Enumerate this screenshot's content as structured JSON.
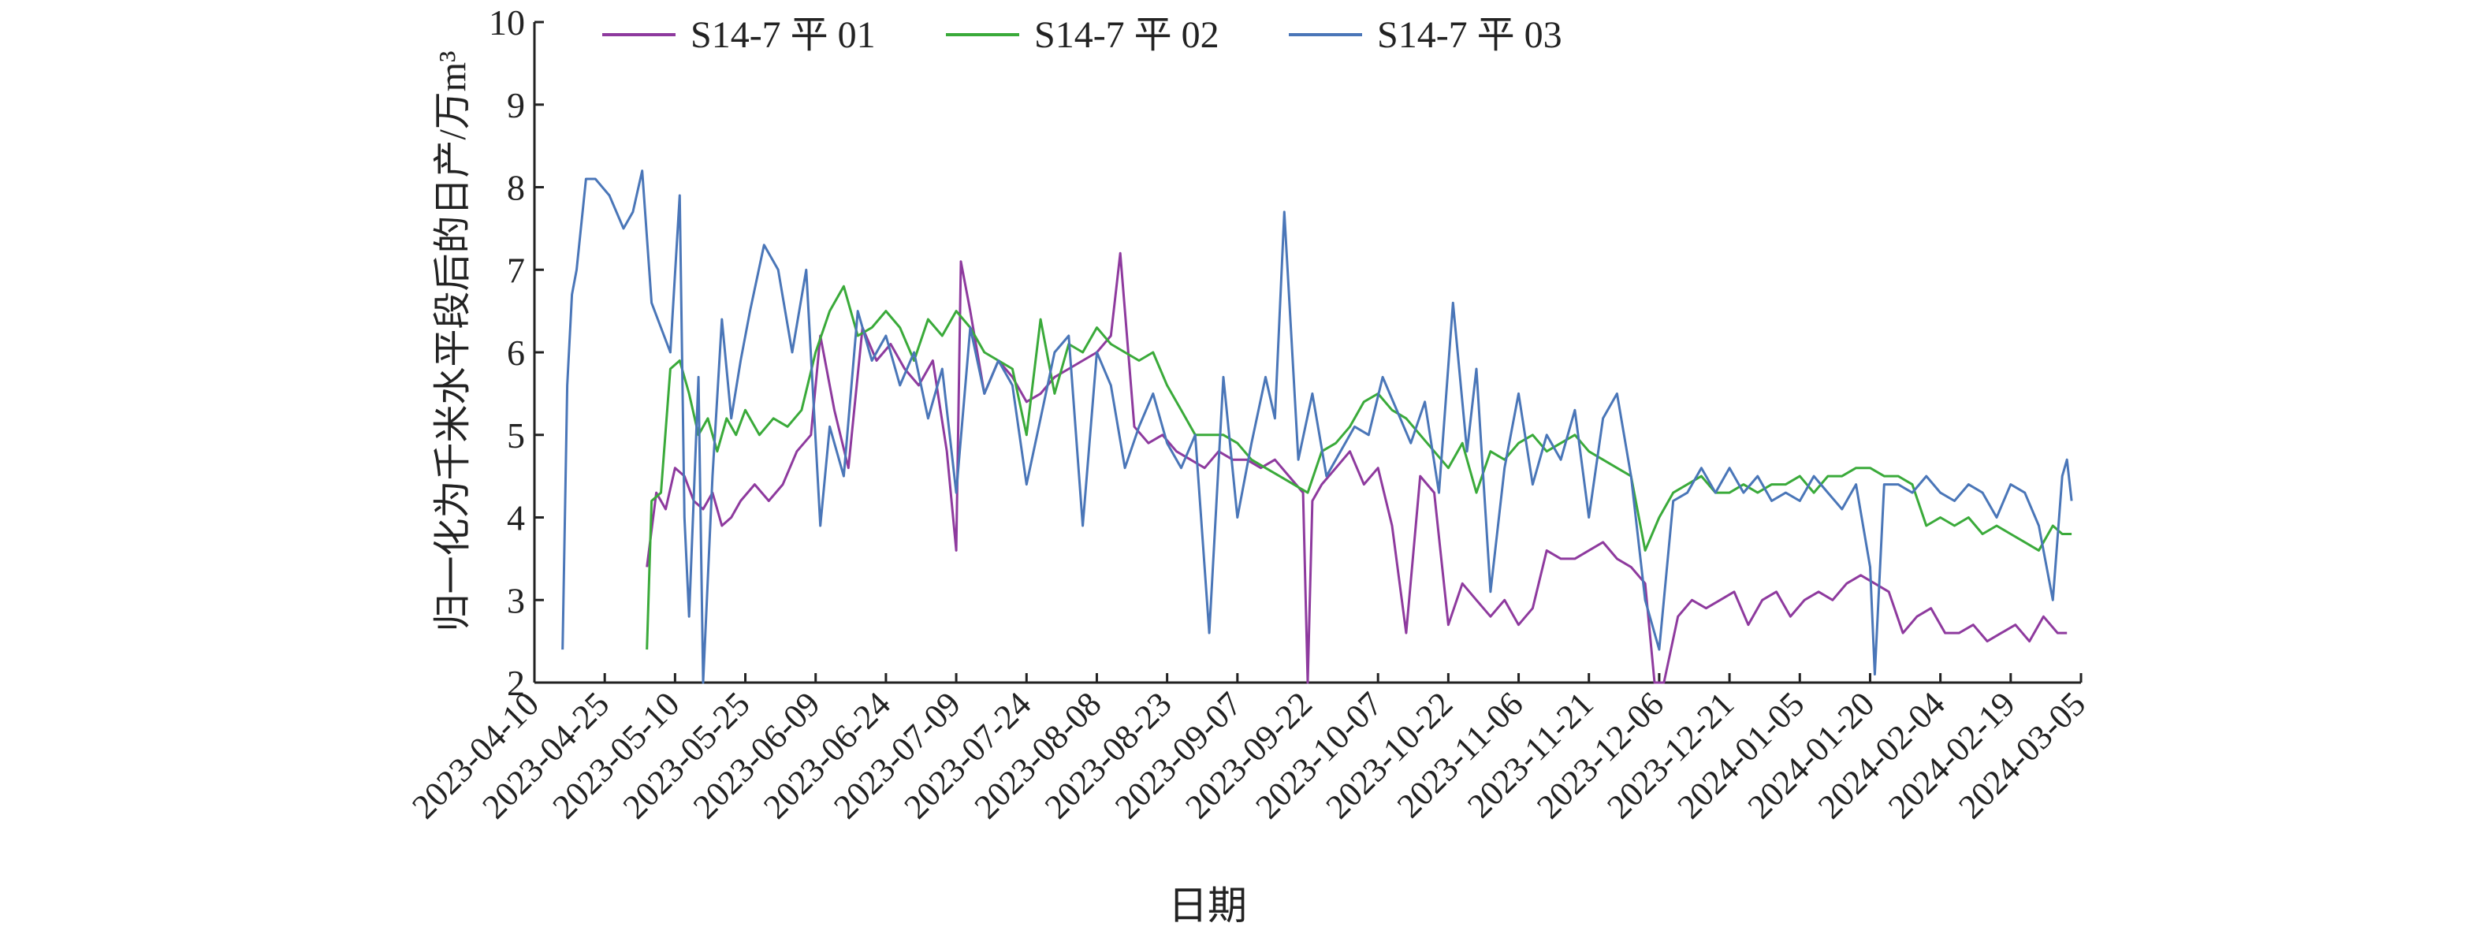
{
  "chart_data": {
    "type": "line",
    "title": "",
    "xlabel": "日期",
    "ylabel": "归一化为千米水平段后的日产/万m³",
    "ylim": [
      2,
      10
    ],
    "yticks": [
      "2",
      "3",
      "4",
      "5",
      "6",
      "7",
      "8",
      "9",
      "10"
    ],
    "xlim": [
      "2023-04-10",
      "2024-03-05"
    ],
    "xticks": [
      "2023-04-10",
      "2023-04-25",
      "2023-05-10",
      "2023-05-25",
      "2023-06-09",
      "2023-06-24",
      "2023-07-09",
      "2023-07-24",
      "2023-08-08",
      "2023-08-23",
      "2023-09-07",
      "2023-09-22",
      "2023-10-07",
      "2023-10-22",
      "2023-11-06",
      "2023-11-21",
      "2023-12-06",
      "2023-12-21",
      "2024-01-05",
      "2024-01-20",
      "2024-02-04",
      "2024-02-19",
      "2024-03-05"
    ],
    "legend_position": "top",
    "grid": false,
    "series": [
      {
        "name": "S14-7 平 01",
        "color": "#8e3a9e",
        "x": [
          "2023-05-04",
          "2023-05-06",
          "2023-05-08",
          "2023-05-10",
          "2023-05-12",
          "2023-05-14",
          "2023-05-16",
          "2023-05-18",
          "2023-05-20",
          "2023-05-22",
          "2023-05-24",
          "2023-05-27",
          "2023-05-30",
          "2023-06-02",
          "2023-06-05",
          "2023-06-08",
          "2023-06-10",
          "2023-06-13",
          "2023-06-16",
          "2023-06-19",
          "2023-06-22",
          "2023-06-25",
          "2023-06-28",
          "2023-07-01",
          "2023-07-04",
          "2023-07-07",
          "2023-07-09",
          "2023-07-10",
          "2023-07-12",
          "2023-07-15",
          "2023-07-18",
          "2023-07-21",
          "2023-07-24",
          "2023-07-27",
          "2023-07-30",
          "2023-08-02",
          "2023-08-05",
          "2023-08-08",
          "2023-08-11",
          "2023-08-13",
          "2023-08-16",
          "2023-08-19",
          "2023-08-22",
          "2023-08-25",
          "2023-08-28",
          "2023-08-31",
          "2023-09-03",
          "2023-09-06",
          "2023-09-09",
          "2023-09-12",
          "2023-09-15",
          "2023-09-18",
          "2023-09-21",
          "2023-09-22",
          "2023-09-23",
          "2023-09-25",
          "2023-09-28",
          "2023-10-01",
          "2023-10-04",
          "2023-10-07",
          "2023-10-10",
          "2023-10-13",
          "2023-10-16",
          "2023-10-19",
          "2023-10-22",
          "2023-10-25",
          "2023-10-28",
          "2023-10-31",
          "2023-11-03",
          "2023-11-06",
          "2023-11-09",
          "2023-11-12",
          "2023-11-15",
          "2023-11-18",
          "2023-11-21",
          "2023-11-24",
          "2023-11-27",
          "2023-11-30",
          "2023-12-03",
          "2023-12-05",
          "2023-12-07",
          "2023-12-10",
          "2023-12-13",
          "2023-12-16",
          "2023-12-19",
          "2023-12-22",
          "2023-12-25",
          "2023-12-28",
          "2023-12-31",
          "2024-01-03",
          "2024-01-06",
          "2024-01-09",
          "2024-01-12",
          "2024-01-15",
          "2024-01-18",
          "2024-01-21",
          "2024-01-24",
          "2024-01-27",
          "2024-01-30",
          "2024-02-02",
          "2024-02-05",
          "2024-02-08",
          "2024-02-11",
          "2024-02-14",
          "2024-02-17",
          "2024-02-20",
          "2024-02-23",
          "2024-02-26",
          "2024-02-29",
          "2024-03-02"
        ],
        "y": [
          3.4,
          4.3,
          4.1,
          4.6,
          4.5,
          4.2,
          4.1,
          4.3,
          3.9,
          4.0,
          4.2,
          4.4,
          4.2,
          4.4,
          4.8,
          5.0,
          6.2,
          5.3,
          4.6,
          6.3,
          5.9,
          6.1,
          5.8,
          5.6,
          5.9,
          4.8,
          3.6,
          7.1,
          6.5,
          5.5,
          5.9,
          5.7,
          5.4,
          5.5,
          5.7,
          5.8,
          5.9,
          6.0,
          6.2,
          7.2,
          5.1,
          4.9,
          5.0,
          4.8,
          4.7,
          4.6,
          4.8,
          4.7,
          4.7,
          4.6,
          4.7,
          4.5,
          4.3,
          2.0,
          4.2,
          4.4,
          4.6,
          4.8,
          4.4,
          4.6,
          3.9,
          2.6,
          4.5,
          4.3,
          2.7,
          3.2,
          3.0,
          2.8,
          3.0,
          2.7,
          2.9,
          3.6,
          3.5,
          3.5,
          3.6,
          3.7,
          3.5,
          3.4,
          3.2,
          2.0,
          2.0,
          2.8,
          3.0,
          2.9,
          3.0,
          3.1,
          2.7,
          3.0,
          3.1,
          2.8,
          3.0,
          3.1,
          3.0,
          3.2,
          3.3,
          3.2,
          3.1,
          2.6,
          2.8,
          2.9,
          2.6,
          2.6,
          2.7,
          2.5,
          2.6,
          2.7,
          2.5,
          2.8,
          2.6,
          2.6
        ]
      },
      {
        "name": "S14-7 平 02",
        "color": "#3aaa3a",
        "x": [
          "2023-05-04",
          "2023-05-05",
          "2023-05-07",
          "2023-05-09",
          "2023-05-11",
          "2023-05-13",
          "2023-05-15",
          "2023-05-17",
          "2023-05-19",
          "2023-05-21",
          "2023-05-23",
          "2023-05-25",
          "2023-05-28",
          "2023-05-31",
          "2023-06-03",
          "2023-06-06",
          "2023-06-09",
          "2023-06-12",
          "2023-06-15",
          "2023-06-18",
          "2023-06-21",
          "2023-06-24",
          "2023-06-27",
          "2023-06-30",
          "2023-07-03",
          "2023-07-06",
          "2023-07-09",
          "2023-07-12",
          "2023-07-15",
          "2023-07-18",
          "2023-07-21",
          "2023-07-24",
          "2023-07-27",
          "2023-07-30",
          "2023-08-02",
          "2023-08-05",
          "2023-08-08",
          "2023-08-11",
          "2023-08-14",
          "2023-08-17",
          "2023-08-20",
          "2023-08-23",
          "2023-08-26",
          "2023-08-29",
          "2023-09-01",
          "2023-09-04",
          "2023-09-07",
          "2023-09-10",
          "2023-09-13",
          "2023-09-16",
          "2023-09-19",
          "2023-09-22",
          "2023-09-25",
          "2023-09-28",
          "2023-10-01",
          "2023-10-04",
          "2023-10-07",
          "2023-10-10",
          "2023-10-13",
          "2023-10-16",
          "2023-10-19",
          "2023-10-22",
          "2023-10-25",
          "2023-10-28",
          "2023-10-31",
          "2023-11-03",
          "2023-11-06",
          "2023-11-09",
          "2023-11-12",
          "2023-11-15",
          "2023-11-18",
          "2023-11-21",
          "2023-11-24",
          "2023-11-27",
          "2023-11-30",
          "2023-12-03",
          "2023-12-06",
          "2023-12-09",
          "2023-12-12",
          "2023-12-15",
          "2023-12-18",
          "2023-12-21",
          "2023-12-24",
          "2023-12-27",
          "2023-12-30",
          "2024-01-02",
          "2024-01-05",
          "2024-01-08",
          "2024-01-11",
          "2024-01-14",
          "2024-01-17",
          "2024-01-20",
          "2024-01-23",
          "2024-01-26",
          "2024-01-29",
          "2024-02-01",
          "2024-02-04",
          "2024-02-07",
          "2024-02-10",
          "2024-02-13",
          "2024-02-16",
          "2024-02-19",
          "2024-02-22",
          "2024-02-25",
          "2024-02-28",
          "2024-03-01",
          "2024-03-03"
        ],
        "y": [
          2.4,
          4.2,
          4.3,
          5.8,
          5.9,
          5.5,
          5.0,
          5.2,
          4.8,
          5.2,
          5.0,
          5.3,
          5.0,
          5.2,
          5.1,
          5.3,
          6.0,
          6.5,
          6.8,
          6.2,
          6.3,
          6.5,
          6.3,
          5.9,
          6.4,
          6.2,
          6.5,
          6.3,
          6.0,
          5.9,
          5.8,
          5.0,
          6.4,
          5.5,
          6.1,
          6.0,
          6.3,
          6.1,
          6.0,
          5.9,
          6.0,
          5.6,
          5.3,
          5.0,
          5.0,
          5.0,
          4.9,
          4.7,
          4.6,
          4.5,
          4.4,
          4.3,
          4.8,
          4.9,
          5.1,
          5.4,
          5.5,
          5.3,
          5.2,
          5.0,
          4.8,
          4.6,
          4.9,
          4.3,
          4.8,
          4.7,
          4.9,
          5.0,
          4.8,
          4.9,
          5.0,
          4.8,
          4.7,
          4.6,
          4.5,
          3.6,
          4.0,
          4.3,
          4.4,
          4.5,
          4.3,
          4.3,
          4.4,
          4.3,
          4.4,
          4.4,
          4.5,
          4.3,
          4.5,
          4.5,
          4.6,
          4.6,
          4.5,
          4.5,
          4.4,
          3.9,
          4.0,
          3.9,
          4.0,
          3.8,
          3.9,
          3.8,
          3.7,
          3.6,
          3.9,
          3.8,
          3.8
        ]
      },
      {
        "name": "S14-7 平 03",
        "color": "#4a76b8",
        "x": [
          "2023-04-16",
          "2023-04-17",
          "2023-04-18",
          "2023-04-19",
          "2023-04-21",
          "2023-04-23",
          "2023-04-26",
          "2023-04-29",
          "2023-05-01",
          "2023-05-03",
          "2023-05-05",
          "2023-05-07",
          "2023-05-09",
          "2023-05-11",
          "2023-05-12",
          "2023-05-13",
          "2023-05-15",
          "2023-05-16",
          "2023-05-18",
          "2023-05-20",
          "2023-05-22",
          "2023-05-24",
          "2023-05-26",
          "2023-05-29",
          "2023-06-01",
          "2023-06-04",
          "2023-06-07",
          "2023-06-10",
          "2023-06-12",
          "2023-06-15",
          "2023-06-18",
          "2023-06-21",
          "2023-06-24",
          "2023-06-27",
          "2023-06-30",
          "2023-07-03",
          "2023-07-06",
          "2023-07-09",
          "2023-07-12",
          "2023-07-15",
          "2023-07-18",
          "2023-07-21",
          "2023-07-24",
          "2023-07-27",
          "2023-07-30",
          "2023-08-02",
          "2023-08-05",
          "2023-08-08",
          "2023-08-11",
          "2023-08-14",
          "2023-08-17",
          "2023-08-20",
          "2023-08-23",
          "2023-08-26",
          "2023-08-29",
          "2023-09-01",
          "2023-09-04",
          "2023-09-07",
          "2023-09-10",
          "2023-09-13",
          "2023-09-15",
          "2023-09-17",
          "2023-09-20",
          "2023-09-23",
          "2023-09-26",
          "2023-09-29",
          "2023-10-02",
          "2023-10-05",
          "2023-10-08",
          "2023-10-11",
          "2023-10-14",
          "2023-10-17",
          "2023-10-20",
          "2023-10-23",
          "2023-10-26",
          "2023-10-28",
          "2023-10-31",
          "2023-11-03",
          "2023-11-06",
          "2023-11-09",
          "2023-11-12",
          "2023-11-15",
          "2023-11-18",
          "2023-11-21",
          "2023-11-24",
          "2023-11-27",
          "2023-11-30",
          "2023-12-03",
          "2023-12-06",
          "2023-12-09",
          "2023-12-12",
          "2023-12-15",
          "2023-12-18",
          "2023-12-21",
          "2023-12-24",
          "2023-12-27",
          "2023-12-30",
          "2024-01-02",
          "2024-01-05",
          "2024-01-08",
          "2024-01-11",
          "2024-01-14",
          "2024-01-17",
          "2024-01-20",
          "2024-01-21",
          "2024-01-23",
          "2024-01-26",
          "2024-01-29",
          "2024-02-01",
          "2024-02-04",
          "2024-02-07",
          "2024-02-10",
          "2024-02-13",
          "2024-02-16",
          "2024-02-19",
          "2024-02-22",
          "2024-02-25",
          "2024-02-28",
          "2024-03-01",
          "2024-03-02",
          "2024-03-03"
        ],
        "y": [
          2.4,
          5.6,
          6.7,
          7.0,
          8.1,
          8.1,
          7.9,
          7.5,
          7.7,
          8.2,
          6.6,
          6.3,
          6.0,
          7.9,
          4.0,
          2.8,
          5.7,
          2.0,
          4.5,
          6.4,
          5.2,
          5.9,
          6.5,
          7.3,
          7.0,
          6.0,
          7.0,
          3.9,
          5.1,
          4.5,
          6.5,
          5.9,
          6.2,
          5.6,
          6.0,
          5.2,
          5.8,
          4.3,
          6.3,
          5.5,
          5.9,
          5.6,
          4.4,
          5.2,
          6.0,
          6.2,
          3.9,
          6.0,
          5.6,
          4.6,
          5.1,
          5.5,
          4.9,
          4.6,
          5.0,
          2.6,
          5.7,
          4.0,
          4.9,
          5.7,
          5.2,
          7.7,
          4.7,
          5.5,
          4.5,
          4.8,
          5.1,
          5.0,
          5.7,
          5.3,
          4.9,
          5.4,
          4.3,
          6.6,
          4.8,
          5.8,
          3.1,
          4.6,
          5.5,
          4.4,
          5.0,
          4.7,
          5.3,
          4.0,
          5.2,
          5.5,
          4.5,
          3.0,
          2.4,
          4.2,
          4.3,
          4.6,
          4.3,
          4.6,
          4.3,
          4.5,
          4.2,
          4.3,
          4.2,
          4.5,
          4.3,
          4.1,
          4.4,
          3.4,
          2.1,
          4.4,
          4.4,
          4.3,
          4.5,
          4.3,
          4.2,
          4.4,
          4.3,
          4.0,
          4.4,
          4.3,
          3.9,
          3.0,
          4.5,
          4.7,
          4.2
        ]
      }
    ]
  }
}
